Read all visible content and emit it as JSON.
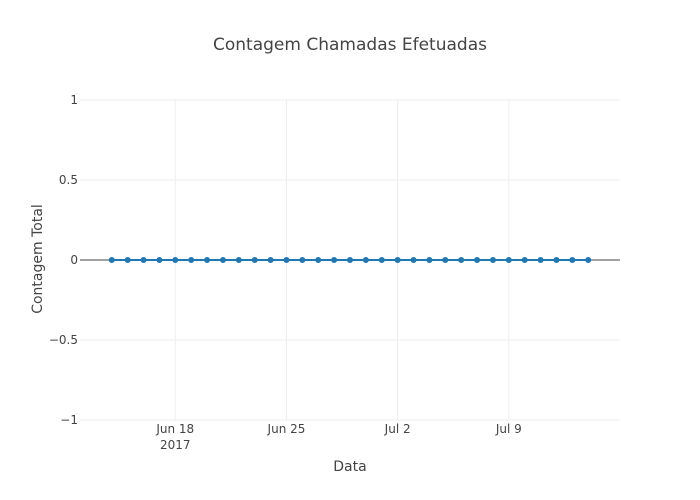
{
  "chart_data": {
    "type": "line",
    "title": "Contagem Chamadas Efetuadas",
    "xlabel": "Data",
    "ylabel": "Contagem Total",
    "ylim": [
      -1,
      1
    ],
    "xlim": [
      "2017-06-12",
      "2017-07-16"
    ],
    "grid": true,
    "legend": "none",
    "yticks": [
      {
        "value": 1,
        "label": "1"
      },
      {
        "value": 0.5,
        "label": "0.5"
      },
      {
        "value": 0,
        "label": "0"
      },
      {
        "value": -0.5,
        "label": "−0.5"
      },
      {
        "value": -1,
        "label": "−1"
      }
    ],
    "xticks": [
      {
        "date": "2017-06-18",
        "label": "Jun 18",
        "sublabel": "2017"
      },
      {
        "date": "2017-06-25",
        "label": "Jun 25",
        "sublabel": ""
      },
      {
        "date": "2017-07-02",
        "label": "Jul 2",
        "sublabel": ""
      },
      {
        "date": "2017-07-09",
        "label": "Jul 9",
        "sublabel": ""
      }
    ],
    "series": [
      {
        "color": "#1f77b4",
        "x": [
          "2017-06-14",
          "2017-06-15",
          "2017-06-16",
          "2017-06-17",
          "2017-06-18",
          "2017-06-19",
          "2017-06-20",
          "2017-06-21",
          "2017-06-22",
          "2017-06-23",
          "2017-06-24",
          "2017-06-25",
          "2017-06-26",
          "2017-06-27",
          "2017-06-28",
          "2017-06-29",
          "2017-06-30",
          "2017-07-01",
          "2017-07-02",
          "2017-07-03",
          "2017-07-04",
          "2017-07-05",
          "2017-07-06",
          "2017-07-07",
          "2017-07-08",
          "2017-07-09",
          "2017-07-10",
          "2017-07-11",
          "2017-07-12",
          "2017-07-13",
          "2017-07-14"
        ],
        "y": [
          0,
          0,
          0,
          0,
          0,
          0,
          0,
          0,
          0,
          0,
          0,
          0,
          0,
          0,
          0,
          0,
          0,
          0,
          0,
          0,
          0,
          0,
          0,
          0,
          0,
          0,
          0,
          0,
          0,
          0,
          0
        ]
      }
    ]
  }
}
